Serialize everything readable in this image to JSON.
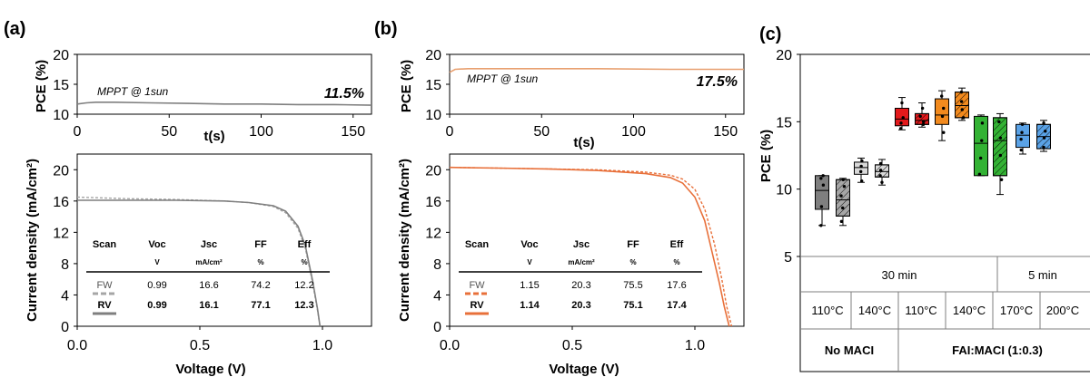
{
  "panel_labels": {
    "a": "(a)",
    "b": "(b)",
    "c": "(c)"
  },
  "colors": {
    "fw_a": "#a6a6a6",
    "rv_a": "#7f7f7f",
    "b_curve": "#e8703a",
    "mppt_a": "#7f7f7f",
    "mppt_b": "#e8a070"
  },
  "chart_data": [
    {
      "id": "a-mppt",
      "type": "line",
      "ylabel": "PCE (%)",
      "xlabel": "t(s)",
      "xlim": [
        0,
        160
      ],
      "ylim": [
        10,
        20
      ],
      "xticks": [
        0,
        50,
        100,
        150
      ],
      "yticks": [
        10,
        15,
        20
      ],
      "annotation": "MPPT @ 1sun",
      "value_label": "11.5%",
      "x": [
        0,
        5,
        10,
        20,
        40,
        60,
        80,
        100,
        120,
        140,
        160
      ],
      "y": [
        11.7,
        11.9,
        12.0,
        12.0,
        11.9,
        11.8,
        11.7,
        11.7,
        11.6,
        11.6,
        11.5
      ]
    },
    {
      "id": "a-jv",
      "type": "line",
      "ylabel": "Current density (mA/cm²)",
      "xlabel": "Voltage (V)",
      "xlim": [
        0,
        1.2
      ],
      "ylim": [
        0,
        22
      ],
      "xticks": [
        "0.0",
        "0.5",
        "1.0"
      ],
      "yticks": [
        0,
        4,
        8,
        12,
        16,
        20
      ],
      "series": [
        {
          "name": "FW",
          "dashed": true,
          "x": [
            0,
            0.2,
            0.4,
            0.6,
            0.7,
            0.8,
            0.85,
            0.9,
            0.93,
            0.96,
            0.98,
            0.99
          ],
          "y": [
            16.5,
            16.3,
            16.2,
            16.0,
            15.8,
            15.3,
            14.5,
            12.5,
            10.0,
            5.5,
            2.0,
            0
          ]
        },
        {
          "name": "RV",
          "dashed": false,
          "x": [
            0,
            0.2,
            0.4,
            0.6,
            0.7,
            0.8,
            0.85,
            0.9,
            0.93,
            0.96,
            0.98,
            0.99
          ],
          "y": [
            16.1,
            16.1,
            16.1,
            16.0,
            15.8,
            15.4,
            14.7,
            12.8,
            10.3,
            5.8,
            2.2,
            0
          ]
        }
      ],
      "table": {
        "headers": [
          "Scan",
          "Voc",
          "Jsc",
          "FF",
          "Eff"
        ],
        "units": [
          "",
          "V",
          "mA/cm²",
          "%",
          "%"
        ],
        "rows": [
          [
            "FW",
            "0.99",
            "16.6",
            "74.2",
            "12.2"
          ],
          [
            "RV",
            "0.99",
            "16.1",
            "77.1",
            "12.3"
          ]
        ]
      }
    },
    {
      "id": "b-mppt",
      "type": "line",
      "ylabel": "PCE (%)",
      "xlabel": "t(s)",
      "xlim": [
        0,
        160
      ],
      "ylim": [
        10,
        20
      ],
      "xticks": [
        0,
        50,
        100,
        150
      ],
      "yticks": [
        10,
        15,
        20
      ],
      "annotation": "MPPT @ 1sun",
      "value_label": "17.5%",
      "x": [
        0,
        3,
        10,
        40,
        80,
        120,
        160
      ],
      "y": [
        17.0,
        17.5,
        17.6,
        17.6,
        17.6,
        17.5,
        17.5
      ]
    },
    {
      "id": "b-jv",
      "type": "line",
      "ylabel": "Current density (mA/cm²)",
      "xlabel": "Voltage (V)",
      "xlim": [
        0,
        1.2
      ],
      "ylim": [
        0,
        22
      ],
      "xticks": [
        "0.0",
        "0.5",
        "1.0"
      ],
      "yticks": [
        0,
        4,
        8,
        12,
        16,
        20
      ],
      "series": [
        {
          "name": "FW",
          "dashed": true,
          "x": [
            0,
            0.2,
            0.4,
            0.6,
            0.8,
            0.9,
            0.95,
            1.0,
            1.04,
            1.08,
            1.11,
            1.13,
            1.15
          ],
          "y": [
            20.3,
            20.2,
            20.1,
            20.0,
            19.7,
            19.3,
            18.8,
            17.5,
            15.0,
            10.5,
            6.0,
            2.5,
            0
          ]
        },
        {
          "name": "RV",
          "dashed": false,
          "x": [
            0,
            0.2,
            0.4,
            0.6,
            0.8,
            0.9,
            0.95,
            1.0,
            1.04,
            1.07,
            1.1,
            1.12,
            1.14
          ],
          "y": [
            20.3,
            20.2,
            20.1,
            19.9,
            19.5,
            19.0,
            18.3,
            16.5,
            13.5,
            9.5,
            5.5,
            2.5,
            0
          ]
        }
      ],
      "table": {
        "headers": [
          "Scan",
          "Voc",
          "Jsc",
          "FF",
          "Eff"
        ],
        "units": [
          "",
          "V",
          "mA/cm²",
          "%",
          "%"
        ],
        "rows": [
          [
            "FW",
            "1.15",
            "20.3",
            "75.5",
            "17.6"
          ],
          [
            "RV",
            "1.14",
            "20.3",
            "75.1",
            "17.4"
          ]
        ]
      }
    },
    {
      "id": "c-box",
      "type": "box",
      "ylabel": "PCE (%)",
      "ylim": [
        5,
        20
      ],
      "yticks": [
        5,
        10,
        15,
        20
      ],
      "boxes": [
        {
          "color": "#7f7f7f",
          "hatch": false,
          "min": 7.3,
          "q1": 8.5,
          "median": 9.9,
          "q3": 11.0,
          "max": 11.0,
          "points": [
            7.3,
            8.7,
            10.3,
            10.8,
            11.0
          ]
        },
        {
          "color": "#a6a6a6",
          "hatch": true,
          "min": 7.3,
          "q1": 8.0,
          "median": 9.2,
          "q3": 10.7,
          "max": 10.8,
          "points": [
            7.6,
            8.6,
            9.5,
            10.2,
            10.7
          ]
        },
        {
          "color": "#d9d9d9",
          "hatch": false,
          "min": 10.5,
          "q1": 11.1,
          "median": 11.6,
          "q3": 12.0,
          "max": 12.3,
          "points": [
            10.6,
            11.3,
            11.7,
            12.1
          ]
        },
        {
          "color": "#d9d9d9",
          "hatch": true,
          "min": 10.3,
          "q1": 10.9,
          "median": 11.3,
          "q3": 11.8,
          "max": 12.2,
          "points": [
            10.5,
            11.0,
            11.4,
            11.9
          ]
        },
        {
          "color": "#e31a1c",
          "hatch": false,
          "min": 14.4,
          "q1": 14.7,
          "median": 15.2,
          "q3": 16.0,
          "max": 16.8,
          "points": [
            14.5,
            14.9,
            15.3,
            16.4
          ]
        },
        {
          "color": "#e31a1c",
          "hatch": true,
          "min": 14.6,
          "q1": 14.8,
          "median": 15.1,
          "q3": 15.6,
          "max": 16.4,
          "points": [
            14.8,
            15.0,
            15.4,
            16.0
          ]
        },
        {
          "color": "#f28a1e",
          "hatch": false,
          "min": 13.6,
          "q1": 14.8,
          "median": 15.5,
          "q3": 16.7,
          "max": 17.3,
          "points": [
            14.2,
            15.4,
            16.0,
            16.9
          ]
        },
        {
          "color": "#f28a1e",
          "hatch": true,
          "min": 15.1,
          "q1": 15.3,
          "median": 16.2,
          "q3": 17.2,
          "max": 17.5,
          "points": [
            15.3,
            15.9,
            16.5,
            17.2
          ]
        },
        {
          "color": "#33b234",
          "hatch": false,
          "min": 11.0,
          "q1": 11.0,
          "median": 13.4,
          "q3": 15.4,
          "max": 15.5,
          "points": [
            11.1,
            12.3,
            13.6,
            14.9
          ]
        },
        {
          "color": "#33b234",
          "hatch": true,
          "min": 9.6,
          "q1": 11.0,
          "median": 13.6,
          "q3": 15.3,
          "max": 15.6,
          "points": [
            10.7,
            12.5,
            13.8,
            15.0
          ]
        },
        {
          "color": "#5aa2e6",
          "hatch": false,
          "min": 12.6,
          "q1": 13.1,
          "median": 14.0,
          "q3": 14.8,
          "max": 14.9,
          "points": [
            12.9,
            13.7,
            14.2,
            14.8
          ]
        },
        {
          "color": "#5aa2e6",
          "hatch": true,
          "min": 12.8,
          "q1": 13.0,
          "median": 13.9,
          "q3": 14.8,
          "max": 15.1,
          "points": [
            13.1,
            13.8,
            14.3,
            14.9
          ]
        }
      ],
      "time_labels": [
        "30 min",
        "5 min"
      ],
      "temp_labels": [
        "110°C",
        "140°C",
        "110°C",
        "140°C",
        "170°C",
        "200°C"
      ],
      "group_labels": [
        "No MACI",
        "FAI:MACI (1:0.3)"
      ]
    }
  ]
}
